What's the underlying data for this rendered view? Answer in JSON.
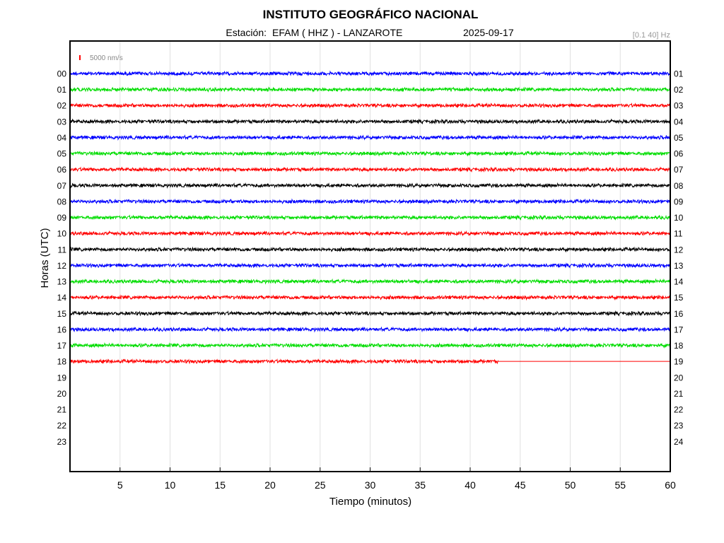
{
  "header": {
    "title": "INSTITUTO GEOGRÁFICO NACIONAL",
    "station_label": "Estación:",
    "station": "EFAM ( HHZ ) - LANZAROTE",
    "date": "2025-09-17",
    "filter": "[0.1 40] Hz"
  },
  "scale": {
    "label": "5000 nm/s",
    "color": "#ff0000"
  },
  "colors": {
    "cycle": [
      "#0000ff",
      "#00dd00",
      "#ff0000",
      "#000000"
    ],
    "grid": "#e0e0e0",
    "frame": "#000000"
  },
  "chart_data": {
    "type": "line",
    "xlabel": "Tiempo (minutos)",
    "ylabel": "Horas (UTC)",
    "xlim": [
      0,
      60
    ],
    "x_ticks": [
      5,
      10,
      15,
      20,
      25,
      30,
      35,
      40,
      45,
      50,
      55,
      60
    ],
    "grid": true,
    "left_hour_labels": [
      "00",
      "01",
      "02",
      "03",
      "04",
      "05",
      "06",
      "07",
      "08",
      "09",
      "10",
      "11",
      "12",
      "13",
      "14",
      "15",
      "16",
      "17",
      "18",
      "19",
      "20",
      "21",
      "22",
      "23"
    ],
    "right_hour_labels": [
      "01",
      "02",
      "03",
      "04",
      "05",
      "06",
      "07",
      "08",
      "09",
      "10",
      "11",
      "12",
      "13",
      "14",
      "15",
      "16",
      "17",
      "18",
      "19",
      "20",
      "21",
      "22",
      "23",
      "24"
    ],
    "series": [
      {
        "hour": "00",
        "data_until_minute": 60
      },
      {
        "hour": "01",
        "data_until_minute": 60
      },
      {
        "hour": "02",
        "data_until_minute": 60
      },
      {
        "hour": "03",
        "data_until_minute": 60
      },
      {
        "hour": "04",
        "data_until_minute": 60
      },
      {
        "hour": "05",
        "data_until_minute": 60
      },
      {
        "hour": "06",
        "data_until_minute": 60
      },
      {
        "hour": "07",
        "data_until_minute": 60
      },
      {
        "hour": "08",
        "data_until_minute": 60
      },
      {
        "hour": "09",
        "data_until_minute": 60
      },
      {
        "hour": "10",
        "data_until_minute": 60
      },
      {
        "hour": "11",
        "data_until_minute": 60
      },
      {
        "hour": "12",
        "data_until_minute": 60
      },
      {
        "hour": "13",
        "data_until_minute": 60
      },
      {
        "hour": "14",
        "data_until_minute": 60
      },
      {
        "hour": "15",
        "data_until_minute": 60
      },
      {
        "hour": "16",
        "data_until_minute": 60
      },
      {
        "hour": "17",
        "data_until_minute": 60
      },
      {
        "hour": "18",
        "data_until_minute": 42.8
      }
    ]
  }
}
